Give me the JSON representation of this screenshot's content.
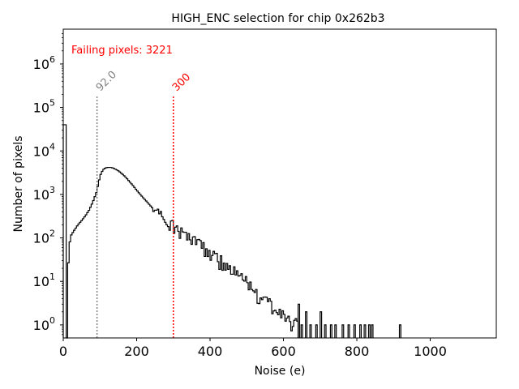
{
  "chart_data": {
    "type": "histogram",
    "title": "HIGH_ENC selection for chip 0x262b3",
    "xlabel": "Noise (e)",
    "ylabel": "Number of pixels",
    "xlim": [
      0,
      1180
    ],
    "ylim_log10": [
      -0.3,
      6.8
    ],
    "yscale": "log",
    "x_ticks": [
      {
        "value": 0,
        "label": "0"
      },
      {
        "value": 200,
        "label": "200"
      },
      {
        "value": 400,
        "label": "400"
      },
      {
        "value": 600,
        "label": "600"
      },
      {
        "value": 800,
        "label": "800"
      },
      {
        "value": 1000,
        "label": "1000"
      }
    ],
    "y_ticks": [
      {
        "exp": 0,
        "base": "10",
        "sup": "0"
      },
      {
        "exp": 1,
        "base": "10",
        "sup": "1"
      },
      {
        "exp": 2,
        "base": "10",
        "sup": "2"
      },
      {
        "exp": 3,
        "base": "10",
        "sup": "3"
      },
      {
        "exp": 4,
        "base": "10",
        "sup": "4"
      },
      {
        "exp": 5,
        "base": "10",
        "sup": "5"
      },
      {
        "exp": 6,
        "base": "10",
        "sup": "6"
      }
    ],
    "annotation": "Failing pixels: 3221",
    "annotation_color": "#ff0000",
    "vlines": [
      {
        "x": 92,
        "label": "92.0",
        "color": "#808080",
        "top_log10": 5.25
      },
      {
        "x": 300,
        "label": "300",
        "color": "#ff0000",
        "top_log10": 5.25
      }
    ],
    "bin_width": 4,
    "histogram_points": [
      [
        0,
        40000
      ],
      [
        4,
        40000
      ],
      [
        8,
        0.5
      ],
      [
        12,
        12
      ],
      [
        16,
        60
      ],
      [
        20,
        110
      ],
      [
        30,
        150
      ],
      [
        40,
        200
      ],
      [
        50,
        250
      ],
      [
        60,
        320
      ],
      [
        70,
        430
      ],
      [
        80,
        650
      ],
      [
        90,
        1100
      ],
      [
        96,
        1800
      ],
      [
        100,
        2600
      ],
      [
        104,
        3200
      ],
      [
        110,
        3800
      ],
      [
        116,
        4100
      ],
      [
        124,
        4200
      ],
      [
        132,
        4150
      ],
      [
        140,
        3900
      ],
      [
        150,
        3500
      ],
      [
        160,
        3000
      ],
      [
        170,
        2500
      ],
      [
        180,
        2000
      ],
      [
        190,
        1600
      ],
      [
        200,
        1250
      ],
      [
        210,
        1000
      ],
      [
        220,
        800
      ],
      [
        230,
        650
      ],
      [
        240,
        520
      ],
      [
        250,
        420
      ],
      [
        260,
        340
      ],
      [
        270,
        280
      ],
      [
        280,
        230
      ],
      [
        290,
        190
      ],
      [
        300,
        180
      ],
      [
        310,
        160
      ],
      [
        320,
        140
      ],
      [
        330,
        120
      ],
      [
        340,
        100
      ],
      [
        350,
        90
      ],
      [
        360,
        80
      ],
      [
        370,
        70
      ],
      [
        380,
        60
      ],
      [
        390,
        50
      ],
      [
        400,
        45
      ],
      [
        410,
        38
      ],
      [
        420,
        33
      ],
      [
        430,
        28
      ],
      [
        440,
        24
      ],
      [
        450,
        20
      ],
      [
        460,
        18
      ],
      [
        470,
        15
      ],
      [
        480,
        12
      ],
      [
        490,
        11
      ],
      [
        500,
        9
      ],
      [
        510,
        7
      ],
      [
        520,
        6
      ],
      [
        530,
        5
      ],
      [
        540,
        4.5
      ],
      [
        550,
        3.5
      ],
      [
        560,
        3
      ],
      [
        570,
        2.5
      ],
      [
        580,
        2.2
      ],
      [
        590,
        2
      ],
      [
        600,
        1.6
      ],
      [
        610,
        1.3
      ],
      [
        620,
        1.2
      ],
      [
        630,
        1
      ],
      [
        640,
        1
      ],
      [
        650,
        0.9
      ],
      [
        660,
        0.8
      ],
      [
        680,
        0.7
      ],
      [
        700,
        0.6
      ],
      [
        720,
        0.55
      ],
      [
        760,
        0.5
      ],
      [
        800,
        0.45
      ],
      [
        850,
        0.4
      ]
    ],
    "sparse_tail": [
      {
        "x": 640,
        "v": 3
      },
      {
        "x": 648,
        "v": 1
      },
      {
        "x": 660,
        "v": 2
      },
      {
        "x": 672,
        "v": 1
      },
      {
        "x": 688,
        "v": 1
      },
      {
        "x": 700,
        "v": 2
      },
      {
        "x": 712,
        "v": 1
      },
      {
        "x": 728,
        "v": 1
      },
      {
        "x": 740,
        "v": 1
      },
      {
        "x": 760,
        "v": 1
      },
      {
        "x": 776,
        "v": 1
      },
      {
        "x": 792,
        "v": 1
      },
      {
        "x": 808,
        "v": 1
      },
      {
        "x": 820,
        "v": 1
      },
      {
        "x": 832,
        "v": 1
      },
      {
        "x": 840,
        "v": 1
      },
      {
        "x": 916,
        "v": 1
      }
    ]
  }
}
